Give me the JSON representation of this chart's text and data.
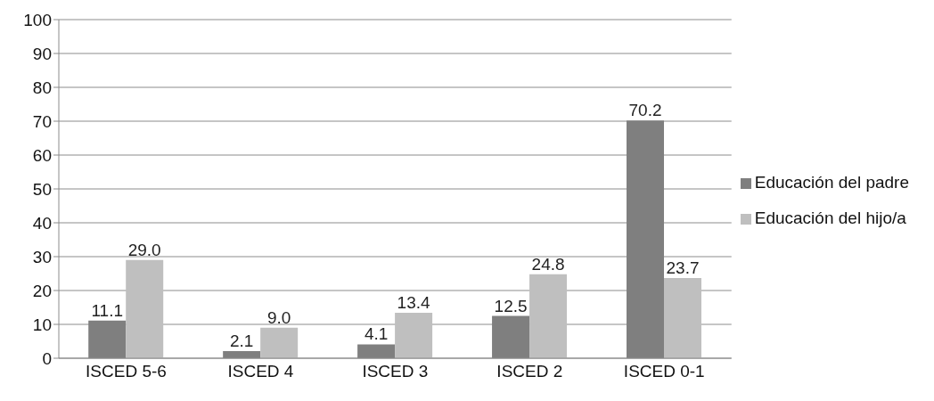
{
  "chart_data": {
    "type": "bar",
    "categories": [
      "ISCED 5-6",
      "ISCED 4",
      "ISCED 3",
      "ISCED 2",
      "ISCED 0-1"
    ],
    "series": [
      {
        "name": "Educación del padre",
        "color": "#7f7f7f",
        "values": [
          11.1,
          2.1,
          4.1,
          12.5,
          70.2
        ],
        "value_labels": [
          "11.1",
          "2.1",
          "4.1",
          "12.5",
          "70.2"
        ]
      },
      {
        "name": "Educación del hijo/a",
        "color": "#bfbfbf",
        "values": [
          29.0,
          9.0,
          13.4,
          24.8,
          23.7
        ],
        "value_labels": [
          "29.0",
          "9.0",
          "13.4",
          "24.8",
          "23.7"
        ]
      }
    ],
    "ylim": [
      0,
      100
    ],
    "yticks": [
      0,
      10,
      20,
      30,
      40,
      50,
      60,
      70,
      80,
      90,
      100
    ],
    "grid": "y",
    "legend": "right"
  }
}
